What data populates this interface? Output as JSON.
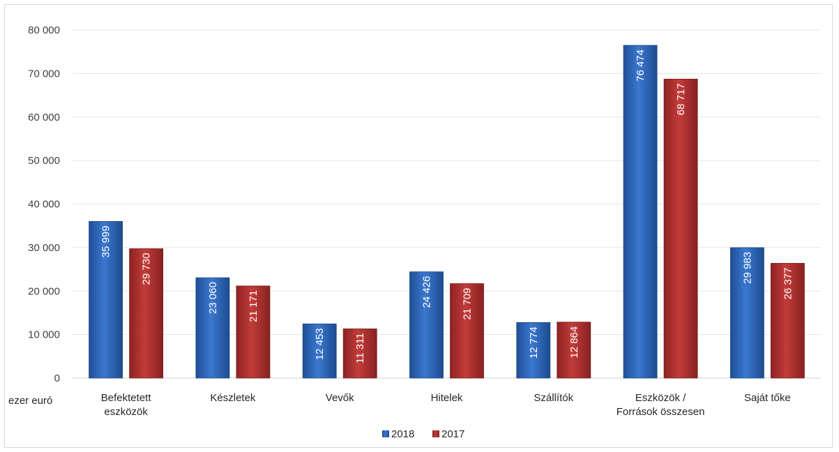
{
  "chart_data": {
    "type": "bar",
    "title": "",
    "xlabel": "",
    "ylabel": "",
    "unit_label": "ezer euró",
    "ylim": [
      0,
      80000
    ],
    "yticks": [
      0,
      10000,
      20000,
      30000,
      40000,
      50000,
      60000,
      70000,
      80000
    ],
    "ytick_labels": [
      "0",
      "10 000",
      "20 000",
      "30 000",
      "40 000",
      "50 000",
      "60 000",
      "70 000",
      "80 000"
    ],
    "grid": true,
    "legend_position": "bottom",
    "categories": [
      [
        "Befektetett",
        "eszközök"
      ],
      [
        "Készletek"
      ],
      [
        "Vevők"
      ],
      [
        "Hitelek"
      ],
      [
        "Szállítók"
      ],
      [
        "Eszközök /",
        "Források összesen"
      ],
      [
        "Saját tőke"
      ]
    ],
    "series": [
      {
        "name": "2018",
        "color": "#2e67b8",
        "values": [
          35999,
          23060,
          12453,
          24426,
          12774,
          76474,
          29983
        ],
        "labels": [
          "35 999",
          "23 060",
          "12 453",
          "24 426",
          "12 774",
          "76 474",
          "29 983"
        ]
      },
      {
        "name": "2017",
        "color": "#b3312f",
        "values": [
          29730,
          21171,
          11311,
          21709,
          12864,
          68717,
          26377
        ],
        "labels": [
          "29 730",
          "21 171",
          "11 311",
          "21 709",
          "12 864",
          "68 717",
          "26 377"
        ]
      }
    ]
  }
}
